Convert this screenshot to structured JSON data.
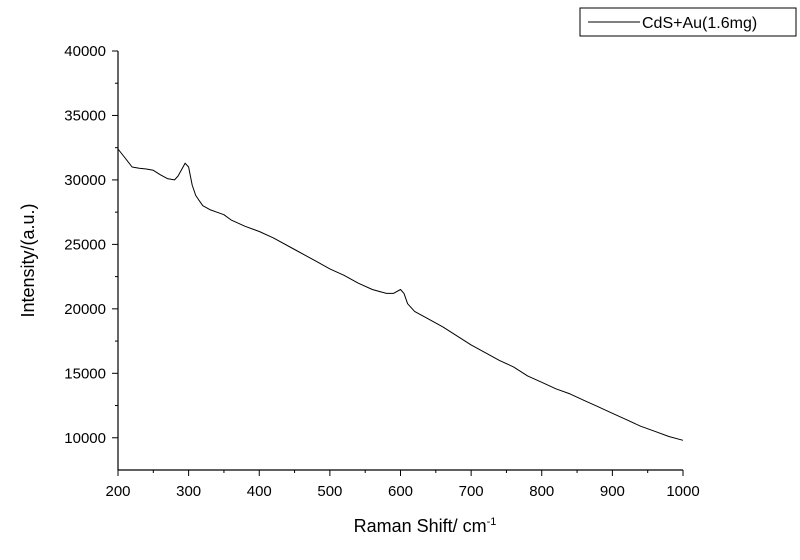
{
  "chart_data": {
    "type": "line",
    "title": "",
    "xlabel": "Raman Shift/ cm",
    "xlabel_superscript": "-1",
    "ylabel": "Intensity/(a.u.)",
    "xlim": [
      200,
      1000
    ],
    "ylim": [
      7500,
      40000
    ],
    "x_ticks": [
      200,
      300,
      400,
      500,
      600,
      700,
      800,
      900,
      1000
    ],
    "y_ticks": [
      10000,
      15000,
      20000,
      25000,
      30000,
      35000,
      40000
    ],
    "grid": false,
    "legend_position": "top-right",
    "series": [
      {
        "name": "CdS+Au(1.6mg)",
        "color": "#000000",
        "x": [
          200,
          210,
          220,
          230,
          240,
          250,
          260,
          270,
          280,
          285,
          290,
          295,
          300,
          305,
          310,
          315,
          320,
          330,
          340,
          350,
          360,
          380,
          400,
          420,
          450,
          480,
          500,
          520,
          540,
          560,
          580,
          590,
          600,
          605,
          610,
          620,
          640,
          660,
          680,
          700,
          720,
          740,
          760,
          780,
          800,
          820,
          840,
          860,
          880,
          900,
          920,
          940,
          960,
          980,
          1000
        ],
        "y": [
          32400,
          31700,
          31000,
          30900,
          30850,
          30750,
          30400,
          30100,
          30000,
          30300,
          30800,
          31300,
          31000,
          29600,
          28800,
          28400,
          28000,
          27700,
          27500,
          27300,
          26900,
          26400,
          26000,
          25500,
          24600,
          23700,
          23100,
          22600,
          22000,
          21500,
          21200,
          21200,
          21500,
          21200,
          20400,
          19800,
          19200,
          18600,
          17900,
          17200,
          16600,
          16000,
          15500,
          14800,
          14300,
          13800,
          13400,
          12900,
          12400,
          11900,
          11400,
          10900,
          10500,
          10100,
          9800
        ]
      }
    ]
  }
}
